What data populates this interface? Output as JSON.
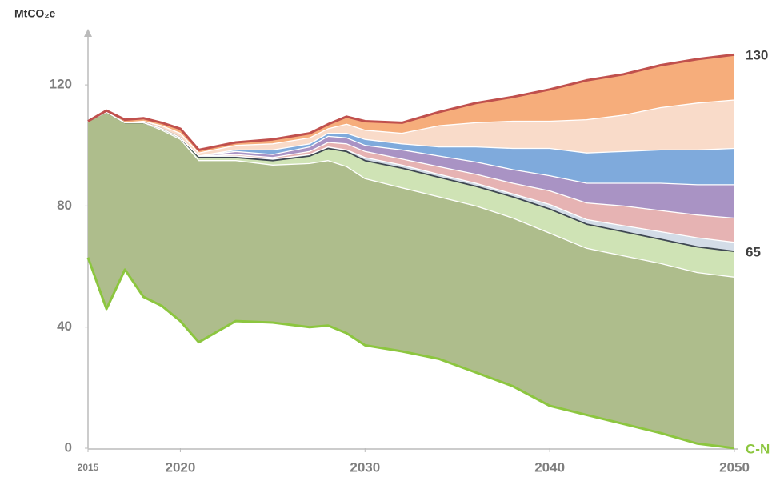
{
  "chart_data": {
    "type": "stacked_area",
    "y_axis_label": "MtCO₂e",
    "x": [
      2015,
      2016,
      2017,
      2018,
      2019,
      2020,
      2021,
      2023,
      2025,
      2027,
      2028,
      2029,
      2030,
      2032,
      2034,
      2036,
      2038,
      2040,
      2042,
      2044,
      2046,
      2048,
      2050
    ],
    "xlim": [
      2015,
      2050
    ],
    "xticks": [
      2015,
      2020,
      2030,
      2040,
      2050
    ],
    "ylim": [
      0,
      138
    ],
    "yticks": [
      0,
      40,
      80,
      120
    ],
    "total_line_color": "#c0504d",
    "series": [
      {
        "color": "#8cc63f",
        "area": false,
        "values": [
          63,
          46,
          59,
          50,
          47,
          42,
          35,
          42,
          41.5,
          40,
          40.5,
          38,
          34,
          32,
          29.5,
          25,
          20.5,
          14,
          11,
          8,
          5,
          1.5,
          0
        ]
      },
      {
        "color": "#aebd8c",
        "edge": "#ffffff",
        "values": [
          45,
          65,
          48.5,
          57.5,
          58,
          60,
          60,
          53,
          52,
          54,
          54.5,
          55,
          55,
          54,
          53.5,
          55,
          55.5,
          57,
          55,
          55.5,
          56,
          56.5,
          56.5
        ]
      },
      {
        "color": "#cfe3b5",
        "edge": "#3f4852",
        "values": [
          0,
          0,
          0,
          0,
          0.5,
          0.5,
          1,
          1,
          1.5,
          2.5,
          4,
          5,
          6,
          6.5,
          6.5,
          6.5,
          7,
          8,
          8,
          8,
          8,
          8.5,
          8.5
        ]
      },
      {
        "color": "#d3dce7",
        "edge": "#ffffff",
        "values": [
          0,
          0,
          0,
          0,
          0,
          0,
          0.5,
          0.5,
          0.5,
          0.5,
          0.5,
          0.5,
          1,
          1,
          1,
          1,
          1,
          1.5,
          1.5,
          2,
          2.5,
          3,
          3
        ]
      },
      {
        "color": "#e6b3b3",
        "edge": "#ffffff",
        "values": [
          0,
          0,
          0,
          0,
          0,
          0,
          0,
          0.5,
          0.5,
          1,
          1.5,
          2,
          2,
          2,
          2.5,
          3,
          3.5,
          4.5,
          5.5,
          6.5,
          7,
          7.5,
          8
        ]
      },
      {
        "color": "#a993c4",
        "edge": "#ffffff",
        "values": [
          0,
          0,
          0,
          0,
          0,
          0,
          0,
          1,
          1,
          1.5,
          2,
          2,
          2,
          3,
          3.5,
          4,
          4.5,
          5,
          6.5,
          7.5,
          9,
          10,
          11
        ]
      },
      {
        "color": "#7faadc",
        "edge": "#ffffff",
        "values": [
          0,
          0,
          0,
          0,
          0,
          0,
          0,
          0.5,
          1.5,
          1,
          1,
          1.5,
          2,
          2,
          3,
          5,
          7,
          9,
          10,
          10.5,
          11,
          11.5,
          12
        ]
      },
      {
        "color": "#f9dbc9",
        "edge": "#ffffff",
        "values": [
          0,
          0,
          0,
          0.5,
          1,
          1.5,
          1,
          1.5,
          2,
          2,
          1.5,
          3,
          3,
          3.5,
          7,
          8,
          9,
          9,
          11,
          12,
          14,
          15.5,
          16
        ]
      },
      {
        "color": "#f6ad7b",
        "edge": "#ffffff",
        "values": [
          0,
          0.5,
          1,
          1,
          1,
          1.5,
          1,
          1,
          1.5,
          1.5,
          1.5,
          2.5,
          3,
          3.5,
          4.5,
          6.5,
          8,
          10.5,
          13,
          13.5,
          14,
          14.5,
          15
        ]
      }
    ],
    "annotations": [
      {
        "text": "130",
        "color": "#404040"
      },
      {
        "text": "65",
        "color": "#404040"
      },
      {
        "text": "C-N",
        "color": "#8cc63f"
      }
    ]
  }
}
